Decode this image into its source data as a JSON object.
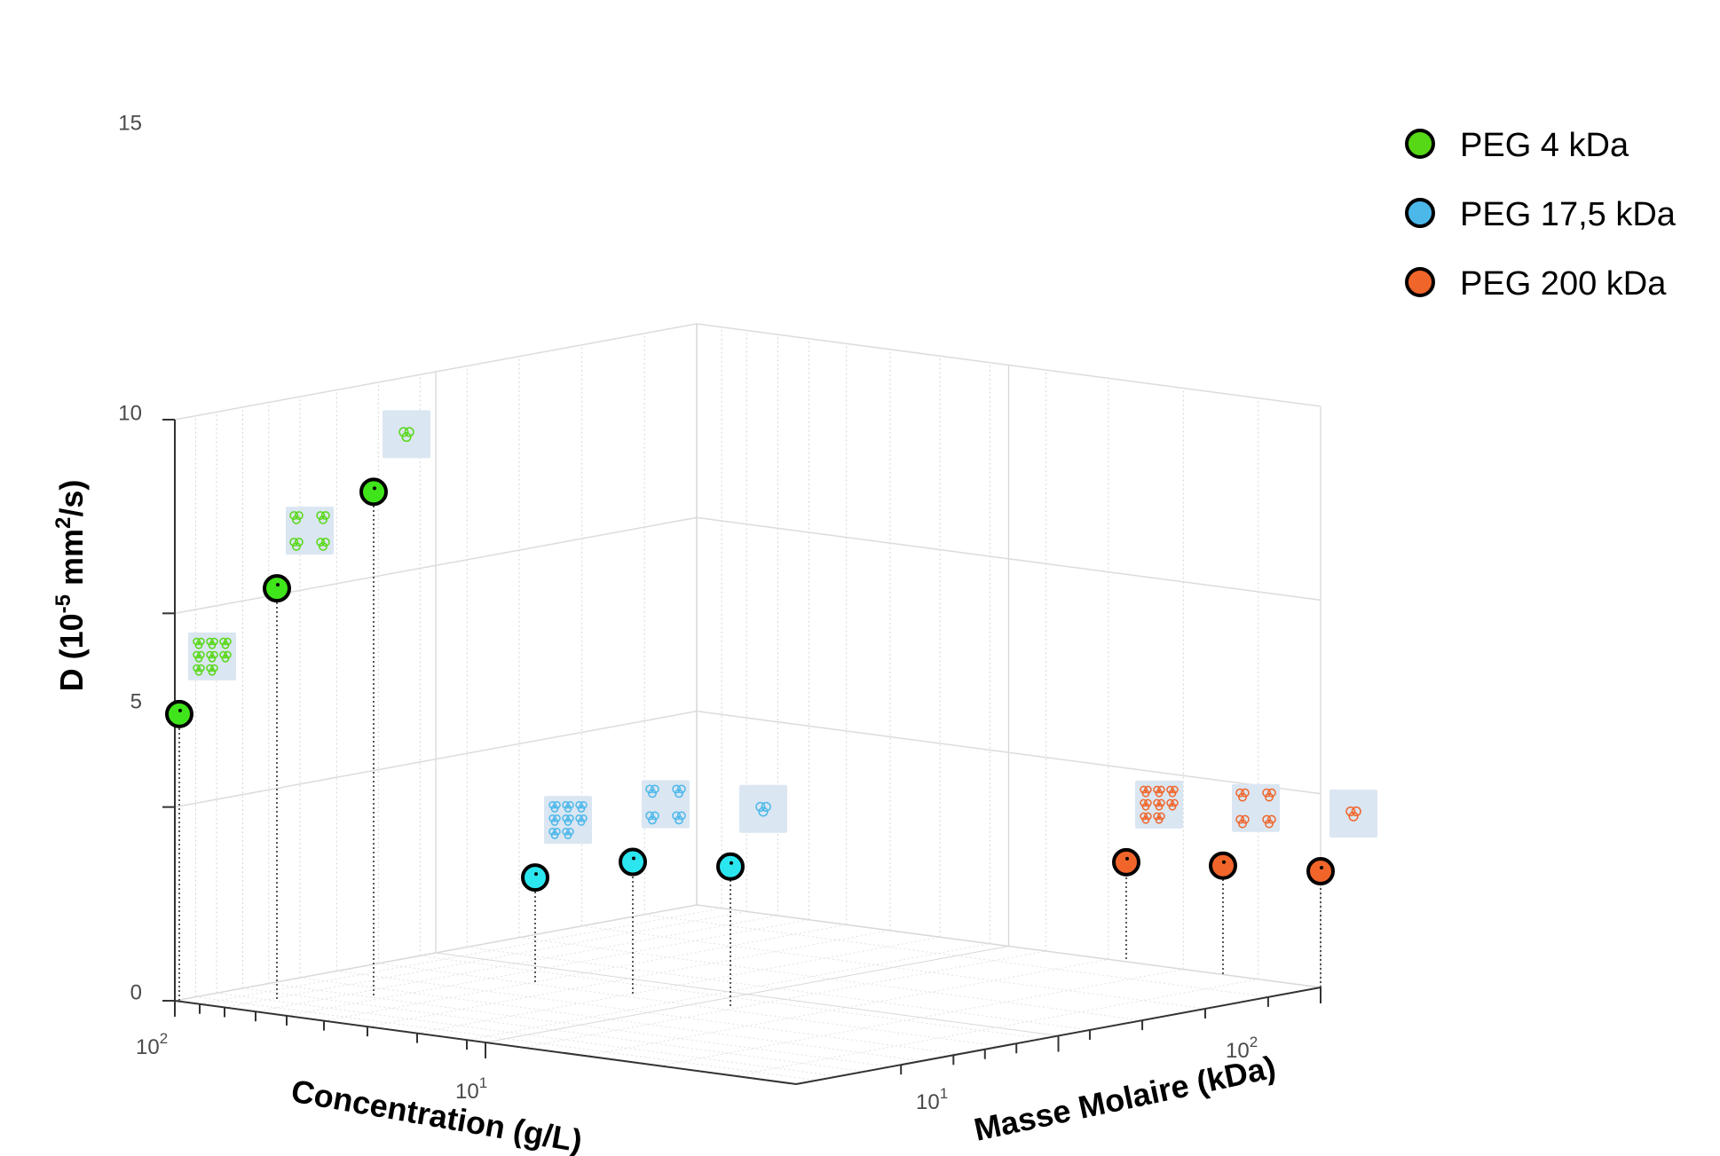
{
  "chart_data": {
    "type": "scatter",
    "dimensions": 3,
    "title": "",
    "zlabel": {
      "main": "D (10",
      "sup": "-5",
      "mid": " mm",
      "sup2": "2",
      "tail": "/s)"
    },
    "xlabel": "Concentration (g/L)",
    "ylabel": "Masse Molaire (kDa)",
    "zlim": [
      0,
      15
    ],
    "z_ticks": [
      "0",
      "5",
      "10",
      "15"
    ],
    "x_ticks": [
      {
        "base": "10",
        "exp": "2"
      },
      {
        "base": "10",
        "exp": "1"
      }
    ],
    "y_ticks": [
      {
        "base": "10",
        "exp": "1"
      },
      {
        "base": "10",
        "exp": "2"
      }
    ],
    "x_scale": "log",
    "y_scale": "log",
    "grid": true,
    "stems": true,
    "legend_position": "top-right",
    "series": [
      {
        "name": "PEG 4 kDa",
        "color": "#57d816",
        "marker_color": "#3fe41a",
        "values": [
          7.4,
          10.6,
          13.0
        ],
        "icon_counts": [
          8,
          4,
          1
        ]
      },
      {
        "name": "PEG 17,5 kDa",
        "color": "#4cb8ea",
        "marker_color": "#2ce6ef",
        "values": [
          2.7,
          3.4,
          3.6
        ],
        "icon_counts": [
          8,
          4,
          1
        ]
      },
      {
        "name": "PEG 200 kDa",
        "color": "#f0652a",
        "marker_color": "#f2652a",
        "values": [
          2.5,
          2.8,
          3.0
        ],
        "icon_counts": [
          8,
          4,
          1
        ]
      }
    ]
  }
}
